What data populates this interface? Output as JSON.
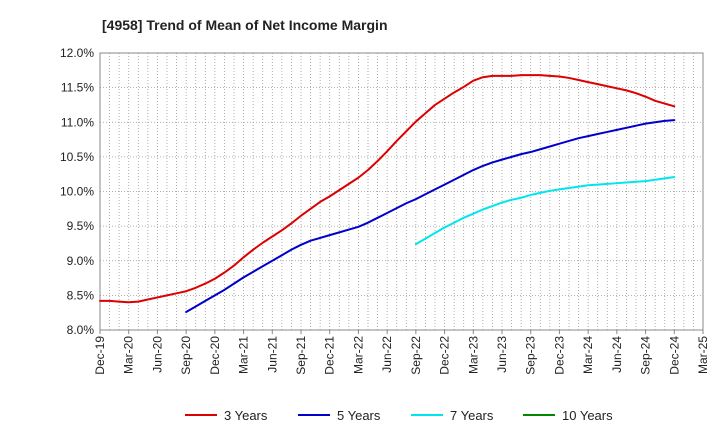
{
  "chart_data": {
    "type": "line",
    "title": "[4958]  Trend of Mean of Net Income Margin",
    "xlabel": "",
    "ylabel": "",
    "ylim": [
      8.0,
      12.0
    ],
    "y_ticks": [
      "8.0%",
      "8.5%",
      "9.0%",
      "9.5%",
      "10.0%",
      "10.5%",
      "11.0%",
      "11.5%",
      "12.0%"
    ],
    "x_ticks": [
      "Dec-19",
      "Mar-20",
      "Jun-20",
      "Sep-20",
      "Dec-20",
      "Mar-21",
      "Jun-21",
      "Sep-21",
      "Dec-21",
      "Mar-22",
      "Jun-22",
      "Sep-22",
      "Dec-22",
      "Mar-23",
      "Jun-23",
      "Sep-23",
      "Dec-23",
      "Mar-24",
      "Jun-24",
      "Sep-24",
      "Dec-24",
      "Mar-25"
    ],
    "grid": true,
    "legend_position": "bottom",
    "series": [
      {
        "name": "3 Years",
        "color": "#dd0000",
        "x": [
          "Dec-19",
          "Jan-20",
          "Feb-20",
          "Mar-20",
          "Apr-20",
          "May-20",
          "Jun-20",
          "Jul-20",
          "Aug-20",
          "Sep-20",
          "Oct-20",
          "Nov-20",
          "Dec-20",
          "Jan-21",
          "Feb-21",
          "Mar-21",
          "Apr-21",
          "May-21",
          "Jun-21",
          "Jul-21",
          "Aug-21",
          "Sep-21",
          "Oct-21",
          "Nov-21",
          "Dec-21",
          "Jan-22",
          "Feb-22",
          "Mar-22",
          "Apr-22",
          "May-22",
          "Jun-22",
          "Jul-22",
          "Aug-22",
          "Sep-22",
          "Oct-22",
          "Nov-22",
          "Dec-22",
          "Jan-23",
          "Feb-23",
          "Mar-23",
          "Apr-23",
          "May-23",
          "Jun-23",
          "Jul-23",
          "Aug-23",
          "Sep-23",
          "Oct-23",
          "Nov-23",
          "Dec-23",
          "Jan-24",
          "Feb-24",
          "Mar-24",
          "Apr-24",
          "May-24",
          "Jun-24",
          "Jul-24",
          "Aug-24",
          "Sep-24",
          "Oct-24",
          "Nov-24",
          "Dec-24"
        ],
        "values": [
          8.42,
          8.42,
          8.41,
          8.4,
          8.41,
          8.44,
          8.47,
          8.5,
          8.53,
          8.56,
          8.61,
          8.67,
          8.74,
          8.83,
          8.93,
          9.05,
          9.16,
          9.26,
          9.35,
          9.44,
          9.54,
          9.65,
          9.75,
          9.85,
          9.93,
          10.02,
          10.11,
          10.2,
          10.31,
          10.44,
          10.58,
          10.73,
          10.87,
          11.01,
          11.13,
          11.25,
          11.34,
          11.43,
          11.51,
          11.6,
          11.65,
          11.67,
          11.67,
          11.67,
          11.68,
          11.68,
          11.68,
          11.67,
          11.66,
          11.64,
          11.61,
          11.58,
          11.55,
          11.52,
          11.49,
          11.46,
          11.42,
          11.37,
          11.31,
          11.27,
          11.23
        ]
      },
      {
        "name": "5 Years",
        "color": "#0000cc",
        "x": [
          "Sep-20",
          "Oct-20",
          "Nov-20",
          "Dec-20",
          "Jan-21",
          "Feb-21",
          "Mar-21",
          "Apr-21",
          "May-21",
          "Jun-21",
          "Jul-21",
          "Aug-21",
          "Sep-21",
          "Oct-21",
          "Nov-21",
          "Dec-21",
          "Jan-22",
          "Feb-22",
          "Mar-22",
          "Apr-22",
          "May-22",
          "Jun-22",
          "Jul-22",
          "Aug-22",
          "Sep-22",
          "Oct-22",
          "Nov-22",
          "Dec-22",
          "Jan-23",
          "Feb-23",
          "Mar-23",
          "Apr-23",
          "May-23",
          "Jun-23",
          "Jul-23",
          "Aug-23",
          "Sep-23",
          "Oct-23",
          "Nov-23",
          "Dec-23",
          "Jan-24",
          "Feb-24",
          "Mar-24",
          "Apr-24",
          "May-24",
          "Jun-24",
          "Jul-24",
          "Aug-24",
          "Sep-24",
          "Oct-24",
          "Nov-24",
          "Dec-24"
        ],
        "values": [
          8.26,
          8.34,
          8.42,
          8.5,
          8.58,
          8.67,
          8.76,
          8.84,
          8.92,
          9.0,
          9.08,
          9.16,
          9.23,
          9.29,
          9.33,
          9.37,
          9.41,
          9.45,
          9.49,
          9.55,
          9.62,
          9.69,
          9.76,
          9.83,
          9.89,
          9.96,
          10.03,
          10.1,
          10.17,
          10.24,
          10.31,
          10.37,
          10.42,
          10.46,
          10.5,
          10.54,
          10.57,
          10.61,
          10.65,
          10.69,
          10.73,
          10.77,
          10.8,
          10.83,
          10.86,
          10.89,
          10.92,
          10.95,
          10.98,
          11.0,
          11.02,
          11.03
        ]
      },
      {
        "name": "7 Years",
        "color": "#00e5ee",
        "x": [
          "Sep-22",
          "Oct-22",
          "Nov-22",
          "Dec-22",
          "Jan-23",
          "Feb-23",
          "Mar-23",
          "Apr-23",
          "May-23",
          "Jun-23",
          "Jul-23",
          "Aug-23",
          "Sep-23",
          "Oct-23",
          "Nov-23",
          "Dec-23",
          "Jan-24",
          "Feb-24",
          "Mar-24",
          "Apr-24",
          "May-24",
          "Jun-24",
          "Jul-24",
          "Aug-24",
          "Sep-24",
          "Oct-24",
          "Nov-24",
          "Dec-24"
        ],
        "values": [
          9.24,
          9.32,
          9.4,
          9.48,
          9.55,
          9.62,
          9.68,
          9.74,
          9.79,
          9.84,
          9.88,
          9.91,
          9.95,
          9.98,
          10.01,
          10.03,
          10.05,
          10.07,
          10.09,
          10.1,
          10.11,
          10.12,
          10.13,
          10.14,
          10.15,
          10.17,
          10.19,
          10.21
        ]
      },
      {
        "name": "10 Years",
        "color": "#008800",
        "x": [],
        "values": []
      }
    ]
  }
}
